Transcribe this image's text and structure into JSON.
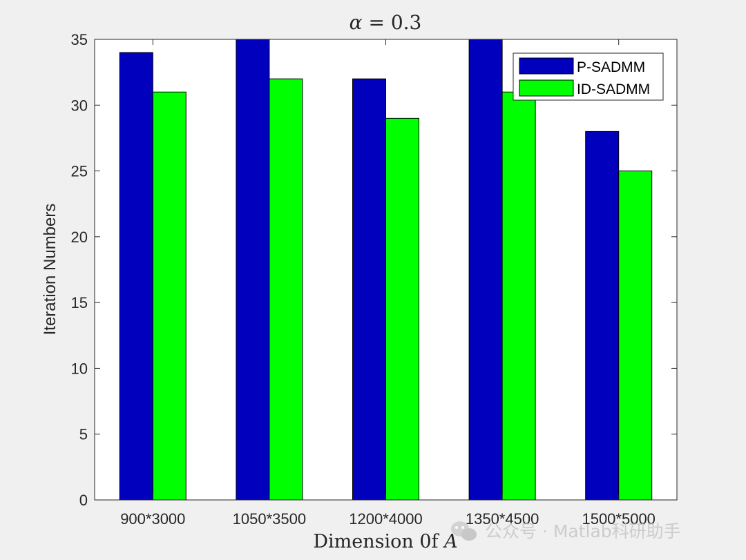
{
  "chart_data": {
    "type": "bar",
    "title": "α = 0.3",
    "xlabel": "Dimension 0f A",
    "ylabel": "Iteration Numbers",
    "categories": [
      "900*3000",
      "1050*3500",
      "1200*4000",
      "1350*4500",
      "1500*5000"
    ],
    "series": [
      {
        "name": "P-SADMM",
        "values": [
          34,
          35,
          32,
          35,
          28
        ],
        "color": "#0000bd"
      },
      {
        "name": "ID-SADMM",
        "values": [
          31,
          32,
          29,
          31,
          25
        ],
        "color": "#00ff00"
      }
    ],
    "ylim": [
      0,
      35
    ],
    "yticks": [
      0,
      5,
      10,
      15,
      20,
      25,
      30,
      35
    ],
    "grid": false,
    "legend_position": "top-right"
  },
  "title_parts": {
    "variable": "α",
    "rest": " = 0.3"
  },
  "xlabel_parts": {
    "text": "Dimension 0f ",
    "variable": "A"
  },
  "watermark": {
    "text": "公众号 · Matlab科研助手",
    "icon": "wechat-icon"
  },
  "colors": {
    "axis": "#262626",
    "plot_bg": "#ffffff",
    "figure_bg": "#f0f0f0"
  }
}
